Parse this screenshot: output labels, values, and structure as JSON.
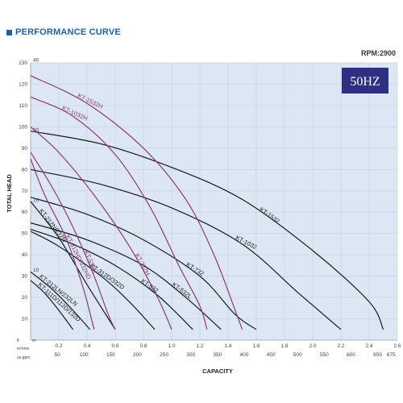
{
  "header": {
    "title": "PERFORMANCE CURVE",
    "rpm": "RPM:2900",
    "badge": "50HZ"
  },
  "chart_data": {
    "type": "line",
    "ylabel": "TOTAL HEAD",
    "xlabel": "CAPACITY",
    "head_ft_ticks": [
      10,
      20,
      30,
      40,
      50,
      60,
      70,
      80,
      90,
      100,
      110,
      120,
      130
    ],
    "head_m_ticks": [
      10,
      20,
      30,
      40
    ],
    "capacity_m3min_ticks": [
      0.2,
      0.4,
      0.6,
      0.8,
      1.0,
      1.2,
      1.4,
      1.6,
      1.8,
      2.0,
      2.2,
      2.4,
      2.6
    ],
    "capacity_gpm_ticks": [
      50,
      100,
      150,
      200,
      250,
      300,
      350,
      400,
      450,
      500,
      550,
      600,
      650,
      675
    ],
    "units": {
      "head_ft": "ft",
      "head_m": "m",
      "capacity_m3min": "m³/min",
      "capacity_gpm": "us.gpm"
    },
    "colors": {
      "black": "#1a1a1a",
      "purple": "#8b3a78",
      "badge": "#2d2f82",
      "grid": "#c6d4e6",
      "panel": "#dce7f3"
    },
    "series": [
      {
        "name": "KT-1532",
        "color": "black",
        "points": [
          [
            0,
            98
          ],
          [
            0.5,
            92
          ],
          [
            1.0,
            81
          ],
          [
            1.5,
            66
          ],
          [
            2.0,
            42
          ],
          [
            2.4,
            18
          ],
          [
            2.5,
            5
          ]
        ]
      },
      {
        "name": "KT-1032",
        "color": "black",
        "points": [
          [
            0,
            80
          ],
          [
            0.5,
            73
          ],
          [
            1.0,
            62
          ],
          [
            1.5,
            45
          ],
          [
            1.9,
            22
          ],
          [
            2.2,
            5
          ]
        ]
      },
      {
        "name": "KT-732",
        "color": "black",
        "points": [
          [
            0,
            67
          ],
          [
            0.4,
            59
          ],
          [
            0.8,
            47
          ],
          [
            1.2,
            30
          ],
          [
            1.45,
            12
          ],
          [
            1.6,
            5
          ]
        ]
      },
      {
        "name": "KT-532L",
        "color": "black",
        "points": [
          [
            0,
            55
          ],
          [
            0.4,
            47
          ],
          [
            0.8,
            35
          ],
          [
            1.1,
            20
          ],
          [
            1.35,
            5
          ]
        ]
      },
      {
        "name": "KT-532",
        "color": "black",
        "points": [
          [
            0,
            52
          ],
          [
            0.3,
            45
          ],
          [
            0.6,
            35
          ],
          [
            0.9,
            21
          ],
          [
            1.15,
            5
          ]
        ]
      },
      {
        "name": "KT-312D/332D",
        "color": "black",
        "points": [
          [
            0,
            51
          ],
          [
            0.2,
            44
          ],
          [
            0.5,
            30
          ],
          [
            0.7,
            18
          ],
          [
            0.88,
            5
          ]
        ]
      },
      {
        "name": "KT-212N/232N",
        "color": "black",
        "points": [
          [
            0,
            65
          ],
          [
            0.2,
            48
          ],
          [
            0.4,
            26
          ],
          [
            0.6,
            5
          ]
        ]
      },
      {
        "name": "KT-212LN/232LN",
        "color": "black",
        "points": [
          [
            0,
            32
          ],
          [
            0.15,
            24
          ],
          [
            0.3,
            14
          ],
          [
            0.42,
            5
          ]
        ]
      },
      {
        "name": "KT-111D/112D/132D",
        "color": "black",
        "points": [
          [
            0,
            28
          ],
          [
            0.1,
            22
          ],
          [
            0.2,
            14
          ],
          [
            0.3,
            5
          ]
        ]
      },
      {
        "name": "KT-1532H",
        "color": "purple",
        "points": [
          [
            0,
            124
          ],
          [
            0.4,
            111
          ],
          [
            0.8,
            90
          ],
          [
            1.1,
            66
          ],
          [
            1.3,
            40
          ],
          [
            1.45,
            14
          ],
          [
            1.5,
            5
          ]
        ]
      },
      {
        "name": "KT-1032H",
        "color": "purple",
        "points": [
          [
            0,
            114
          ],
          [
            0.3,
            105
          ],
          [
            0.6,
            87
          ],
          [
            0.85,
            62
          ],
          [
            1.05,
            35
          ],
          [
            1.2,
            16
          ],
          [
            1.25,
            5
          ]
        ]
      },
      {
        "name": "KT-732H",
        "color": "purple",
        "points": [
          [
            0,
            100
          ],
          [
            0.2,
            88
          ],
          [
            0.45,
            68
          ],
          [
            0.7,
            44
          ],
          [
            0.9,
            20
          ],
          [
            1.0,
            5
          ]
        ]
      },
      {
        "name": "KT-532H",
        "color": "purple",
        "points": [
          [
            0,
            88
          ],
          [
            0.15,
            72
          ],
          [
            0.3,
            53
          ],
          [
            0.45,
            30
          ],
          [
            0.55,
            12
          ],
          [
            0.6,
            5
          ]
        ]
      },
      {
        "name": "KT-312HD/332HD",
        "color": "purple",
        "points": [
          [
            0,
            85
          ],
          [
            0.1,
            68
          ],
          [
            0.25,
            48
          ],
          [
            0.37,
            25
          ],
          [
            0.45,
            5
          ]
        ]
      }
    ],
    "labels": [
      {
        "text": "KT-1532H",
        "series": "KT-1532H"
      },
      {
        "text": "KT-1032H",
        "series": "KT-1032H"
      },
      {
        "text": "KT-1532",
        "series": "KT-1532"
      },
      {
        "text": "KT-1032",
        "series": "KT-1032"
      },
      {
        "text": "KT-732",
        "series": "KT-732"
      },
      {
        "text": "KT-532L",
        "series": "KT-532L"
      },
      {
        "text": "KT-532",
        "series": "KT-532"
      },
      {
        "text": "KT-732H",
        "series": "KT-732H"
      },
      {
        "text": "KT-312D/332D",
        "series": "KT-312D/332D"
      },
      {
        "text": "KT-532H",
        "series": "KT-532H"
      },
      {
        "text": "KT-312HD/332HD",
        "series": "KT-312HD/332HD"
      },
      {
        "text": "KT-212N/232N",
        "series": "KT-212N/232N"
      },
      {
        "text": "KT-212LN/232LN",
        "series": "KT-212LN/232LN"
      },
      {
        "text": "KT-111D/112D/132D",
        "series": "KT-111D/112D/132D"
      }
    ],
    "xlim": [
      0,
      2.6
    ],
    "ylim": [
      0,
      130
    ],
    "grid": true
  }
}
